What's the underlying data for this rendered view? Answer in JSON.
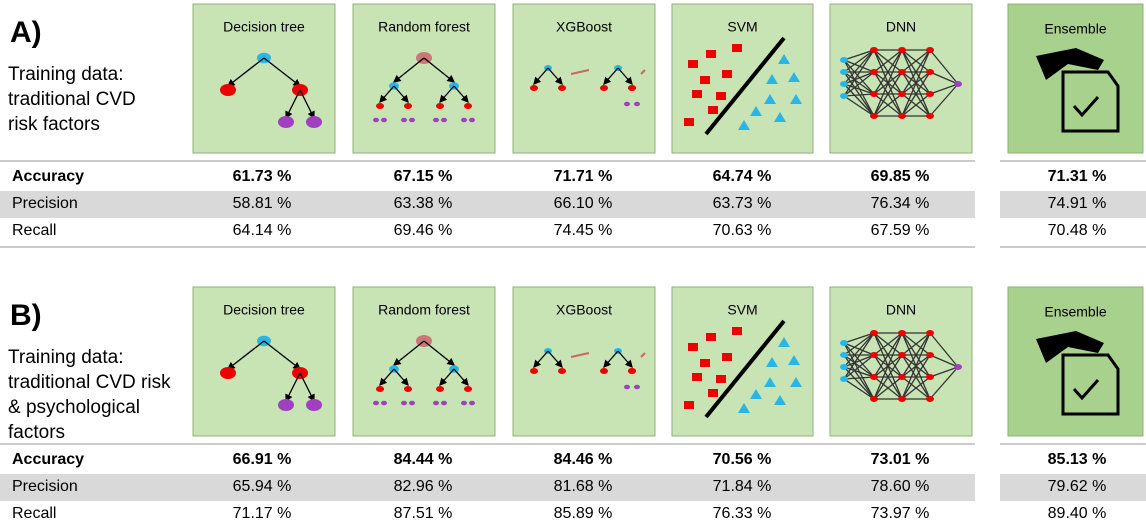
{
  "panels": [
    {
      "label": "A)",
      "training_lines": [
        "Training data:",
        "traditional CVD",
        "risk factors"
      ],
      "models": [
        "Decision tree",
        "Random forest",
        "XGBoost",
        "SVM",
        "DNN",
        "Ensemble"
      ],
      "rows": [
        {
          "name": "Accuracy",
          "values": [
            "61.73 %",
            "67.15 %",
            "71.71 %",
            "64.74 %",
            "69.85 %",
            "71.31 %"
          ]
        },
        {
          "name": "Precision",
          "values": [
            "58.81 %",
            "63.38 %",
            "66.10 %",
            "63.73 %",
            "76.34 %",
            "74.91 %"
          ]
        },
        {
          "name": "Recall",
          "values": [
            "64.14 %",
            "69.46 %",
            "74.45 %",
            "70.63 %",
            "67.59 %",
            "70.48 %"
          ]
        }
      ]
    },
    {
      "label": "B)",
      "training_lines": [
        "Training data:",
        "traditional CVD risk",
        "& psychological",
        "factors"
      ],
      "models": [
        "Decision tree",
        "Random forest",
        "XGBoost",
        "SVM",
        "DNN",
        "Ensemble"
      ],
      "rows": [
        {
          "name": "Accuracy",
          "values": [
            "66.91 %",
            "84.44 %",
            "84.46 %",
            "70.56 %",
            "73.01 %",
            "85.13 %"
          ]
        },
        {
          "name": "Precision",
          "values": [
            "65.94 %",
            "82.96 %",
            "81.68 %",
            "71.84 %",
            "78.60 %",
            "79.62 %"
          ]
        },
        {
          "name": "Recall",
          "values": [
            "71.17 %",
            "87.51 %",
            "85.89 %",
            "76.33 %",
            "73.97 %",
            "89.40 %"
          ]
        }
      ]
    }
  ]
}
